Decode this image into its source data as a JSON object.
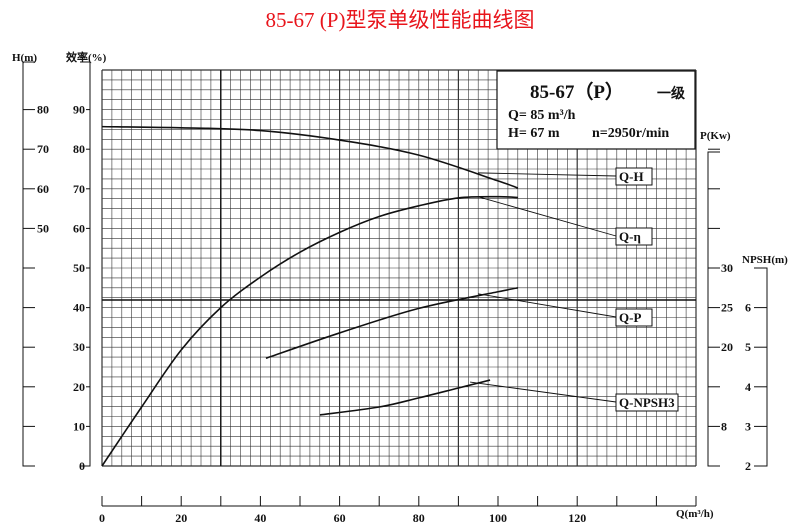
{
  "title": "85-67 (P)型泵单级性能曲线图",
  "colors": {
    "title": "#e8141b",
    "ink": "#111111",
    "grid": "#333333"
  },
  "info_box": {
    "model": "85-67（P）",
    "stage": "一级",
    "flow": "Q= 85 m³/h",
    "head": "H= 67 m",
    "speed": "n=2950r/min"
  },
  "chart_data": {
    "type": "line",
    "grid": true,
    "x": {
      "label": "Q(m³/h)",
      "range": [
        0,
        150
      ],
      "ticks": [
        0,
        10,
        20,
        30,
        40,
        50,
        60,
        70,
        80,
        90,
        100,
        110,
        120,
        130,
        140,
        150
      ],
      "tick_labels": [
        "0",
        "20",
        "40",
        "60",
        "80",
        "100",
        "120"
      ]
    },
    "axes": {
      "head": {
        "label": "H(m)",
        "side": "left",
        "tick_labels": [
          "80",
          "70",
          "60",
          "50"
        ],
        "ticks": [
          80,
          70,
          60,
          50,
          40,
          30,
          20,
          10,
          0
        ]
      },
      "efficiency": {
        "label": "效率(%)",
        "side": "left",
        "range": [
          0,
          100
        ],
        "tick_labels": [
          "90",
          "80",
          "70",
          "60",
          "50",
          "40",
          "30",
          "20",
          "10",
          "0"
        ]
      },
      "power": {
        "label": "P(Kw)",
        "side": "right",
        "tick_labels": [
          "30",
          "25",
          "20",
          "8"
        ],
        "ticks": [
          45,
          40,
          35,
          30,
          25,
          20,
          15,
          10
        ]
      },
      "npsh": {
        "label": "NPSH(m)",
        "side": "right",
        "range": [
          2,
          7
        ],
        "tick_labels": [
          "6",
          "5",
          "4",
          "3",
          "2"
        ]
      }
    },
    "series": [
      {
        "name": "Q-H",
        "axis": "head",
        "x": [
          0,
          20,
          40,
          60,
          80,
          100,
          105
        ],
        "y": [
          75.7,
          75.4,
          74.7,
          72.3,
          68.5,
          62,
          60.2
        ]
      },
      {
        "name": "Q-η",
        "axis": "efficiency",
        "x": [
          0,
          10,
          20,
          30,
          40,
          50,
          60,
          70,
          80,
          90,
          100,
          105
        ],
        "y": [
          0,
          14.9,
          29.3,
          40,
          47.7,
          54,
          59,
          63,
          65.7,
          67.7,
          68,
          67.8
        ]
      },
      {
        "name": "Q-P",
        "axis": "power",
        "x": [
          41.4,
          60,
          80,
          100,
          105
        ],
        "y": [
          18.6,
          21.8,
          24.9,
          27,
          27.5
        ]
      },
      {
        "name": "Q-NPSH3",
        "axis": "npsh",
        "x": [
          55,
          70,
          80,
          90,
          98
        ],
        "y": [
          3.29,
          3.49,
          3.72,
          3.97,
          4.17
        ]
      }
    ]
  }
}
